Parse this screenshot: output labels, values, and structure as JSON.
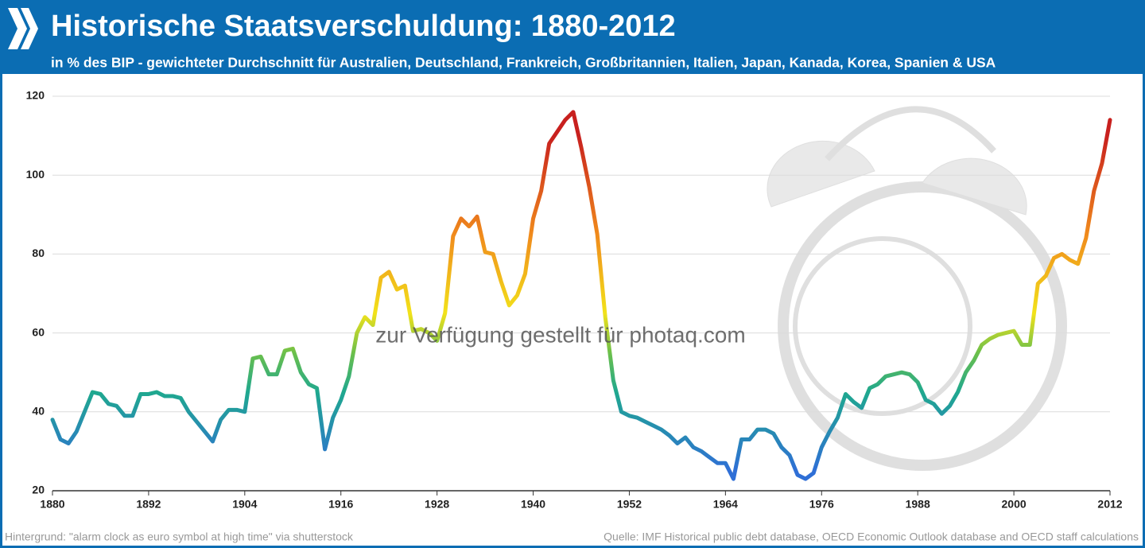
{
  "chart_data": {
    "type": "line",
    "title": "Historische Staatsverschuldung: 1880-2012",
    "subtitle": "in % des BIP - gewichteter Durchschnitt für Australien, Deutschland, Frankreich, Großbritannien, Italien, Japan, Kanada, Korea, Spanien & USA",
    "watermark": "zur Verfügung gestellt für photaq.com",
    "credit": "Hintergrund: \"alarm clock as euro symbol at high time\" via shutterstock",
    "source": "Quelle: IMF Historical public debt database, OECD Economic Outlook database and OECD staff calculations",
    "x": [
      1880,
      1881,
      1882,
      1883,
      1884,
      1885,
      1886,
      1887,
      1888,
      1889,
      1890,
      1891,
      1892,
      1893,
      1894,
      1895,
      1896,
      1897,
      1898,
      1899,
      1900,
      1901,
      1902,
      1903,
      1904,
      1905,
      1906,
      1907,
      1908,
      1909,
      1910,
      1911,
      1912,
      1913,
      1914,
      1915,
      1916,
      1917,
      1918,
      1919,
      1920,
      1921,
      1922,
      1923,
      1924,
      1925,
      1926,
      1927,
      1928,
      1929,
      1930,
      1931,
      1932,
      1933,
      1934,
      1935,
      1936,
      1937,
      1938,
      1939,
      1940,
      1941,
      1942,
      1943,
      1944,
      1945,
      1946,
      1947,
      1948,
      1949,
      1950,
      1951,
      1952,
      1953,
      1954,
      1955,
      1956,
      1957,
      1958,
      1959,
      1960,
      1961,
      1962,
      1963,
      1964,
      1965,
      1966,
      1967,
      1968,
      1969,
      1970,
      1971,
      1972,
      1973,
      1974,
      1975,
      1976,
      1977,
      1978,
      1979,
      1980,
      1981,
      1982,
      1983,
      1984,
      1985,
      1986,
      1987,
      1988,
      1989,
      1990,
      1991,
      1992,
      1993,
      1994,
      1995,
      1996,
      1997,
      1998,
      1999,
      2000,
      2001,
      2002,
      2003,
      2004,
      2005,
      2006,
      2007,
      2008,
      2009,
      2010,
      2011,
      2012
    ],
    "values": [
      38,
      33,
      32,
      35,
      40,
      45,
      44.5,
      42,
      41.5,
      39,
      39,
      44.5,
      44.5,
      45,
      44,
      44,
      43.5,
      40,
      37.5,
      35,
      32.5,
      38,
      40.5,
      40.5,
      40,
      53.5,
      54,
      49.5,
      49.5,
      55.5,
      56,
      50,
      47,
      46,
      30.5,
      38.5,
      43,
      49,
      60,
      64,
      62,
      74,
      75.5,
      71,
      72,
      60.5,
      61,
      60,
      58,
      65,
      84.5,
      89,
      87,
      89.5,
      80.5,
      80,
      73,
      67,
      69.5,
      75,
      89,
      96,
      108,
      111,
      114,
      116,
      107,
      97,
      85,
      64,
      48,
      40,
      39,
      38.5,
      37.5,
      36.5,
      35.5,
      34,
      32,
      33.5,
      31,
      30,
      28.5,
      27,
      27,
      23,
      33,
      33,
      35.5,
      35.5,
      34.5,
      31,
      29,
      24,
      23,
      24.5,
      31,
      35,
      38.5,
      44.5,
      42.5,
      41,
      46,
      47,
      49,
      49.5,
      50,
      49.5,
      47.5,
      43,
      42,
      39.5,
      41.5,
      45,
      50,
      53,
      57,
      58.5,
      59.5,
      60,
      60.5,
      57,
      57,
      72.5,
      74.5,
      79,
      80,
      78.5,
      77.5,
      84,
      96,
      103,
      114
    ],
    "color_stops": [
      {
        "value": 25,
        "color": "#2f6fd6"
      },
      {
        "value": 45,
        "color": "#1fa88f"
      },
      {
        "value": 55,
        "color": "#6cc04a"
      },
      {
        "value": 65,
        "color": "#f2e21a"
      },
      {
        "value": 85,
        "color": "#f08a1c"
      },
      {
        "value": 110,
        "color": "#c8201e"
      }
    ],
    "xlim": [
      1880,
      2012
    ],
    "ylim": [
      20,
      120
    ],
    "xticks": [
      1880,
      1892,
      1904,
      1916,
      1928,
      1940,
      1952,
      1964,
      1976,
      1988,
      2000,
      2012
    ],
    "yticks": [
      20,
      40,
      60,
      80,
      100,
      120
    ],
    "grid": true
  }
}
